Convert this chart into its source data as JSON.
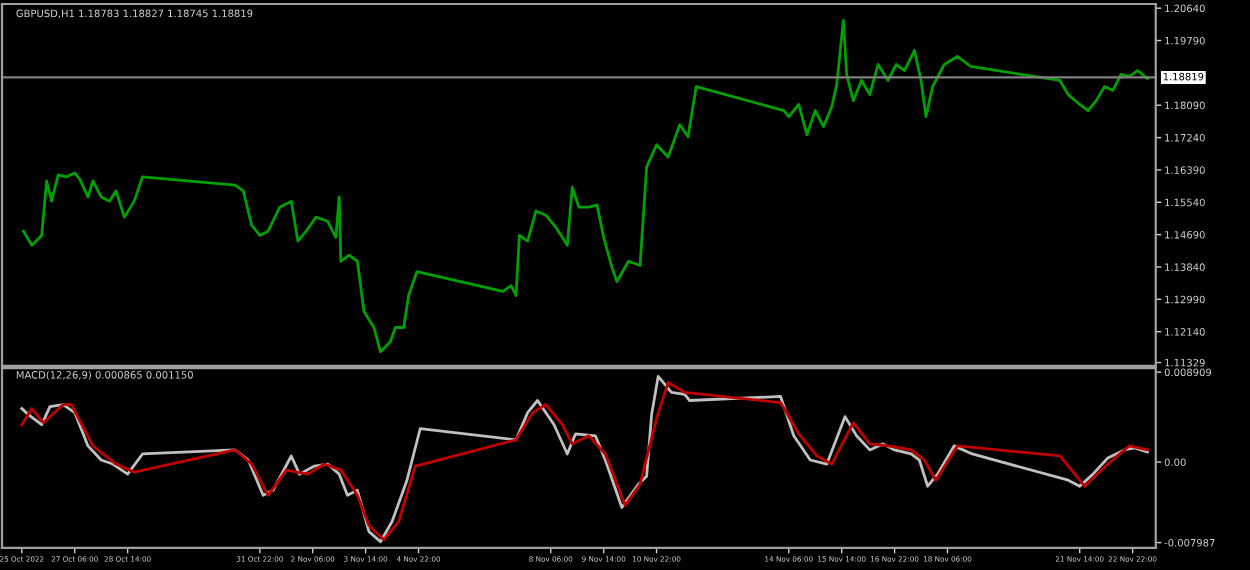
{
  "chart_data": [
    {
      "type": "line",
      "title": "GBPUSD,H1 1.18783 1.18827 1.18745 1.18819",
      "tick_labels": "y",
      "grid": false,
      "xlim": [
        "2022-10-25T10:00",
        "2022-11-23T12:00"
      ],
      "ylim": [
        1.1124,
        1.2075
      ],
      "yticks": [
        {
          "value": 1.2064,
          "label": "1.20640"
        },
        {
          "value": 1.1979,
          "label": "1.19790"
        },
        {
          "value": 1.1809,
          "label": "1.18090"
        },
        {
          "value": 1.1724,
          "label": "1.17240"
        },
        {
          "value": 1.1639,
          "label": "1.16390"
        },
        {
          "value": 1.1554,
          "label": "1.15540"
        },
        {
          "value": 1.1469,
          "label": "1.14690"
        },
        {
          "value": 1.1384,
          "label": "1.13840"
        },
        {
          "value": 1.1299,
          "label": "1.12990"
        },
        {
          "value": 1.1214,
          "label": "1.12140"
        },
        {
          "value": 1.11329,
          "label": "1.11329"
        }
      ],
      "ref_lines": [
        {
          "axis": "y",
          "value": 1.18819,
          "label": "1.18819",
          "color": "#808080"
        }
      ],
      "series": [
        {
          "color": "#00a000",
          "x": [
            "2022-10-25T23:00",
            "2022-10-26T04:00",
            "2022-10-26T10:00",
            "2022-10-26T13:00",
            "2022-10-26T16:00",
            "2022-10-26T20:00",
            "2022-10-27T01:00",
            "2022-10-27T06:00",
            "2022-10-27T09:00",
            "2022-10-27T14:00",
            "2022-10-27T17:00",
            "2022-10-27T22:00",
            "2022-10-28T03:00",
            "2022-10-28T07:00",
            "2022-10-28T12:00",
            "2022-10-28T18:00",
            "2022-10-28T23:00",
            "2022-10-31T07:00",
            "2022-10-31T12:00",
            "2022-10-31T17:00",
            "2022-10-31T22:00",
            "2022-11-01T03:00",
            "2022-11-01T10:00",
            "2022-11-01T17:00",
            "2022-11-01T21:00",
            "2022-11-02T02:00",
            "2022-11-02T08:00",
            "2022-11-02T15:00",
            "2022-11-02T20:00",
            "2022-11-02T22:00",
            "2022-11-02T23:00",
            "2022-11-03T04:00",
            "2022-11-03T09:00",
            "2022-11-03T13:00",
            "2022-11-03T19:00",
            "2022-11-03T23:00",
            "2022-11-04T05:00",
            "2022-11-04T08:00",
            "2022-11-04T13:00",
            "2022-11-04T16:00",
            "2022-11-04T21:00",
            "2022-11-07T01:00",
            "2022-11-07T06:00",
            "2022-11-07T09:00",
            "2022-11-07T11:00",
            "2022-11-07T16:00",
            "2022-11-07T21:00",
            "2022-11-08T03:00",
            "2022-11-08T09:00",
            "2022-11-08T16:00",
            "2022-11-08T19:00",
            "2022-11-08T23:00",
            "2022-11-09T05:00",
            "2022-11-09T10:00",
            "2022-11-09T14:00",
            "2022-11-09T19:00",
            "2022-11-09T22:00",
            "2022-11-10T05:00",
            "2022-11-10T12:00",
            "2022-11-10T16:00",
            "2022-11-10T22:00",
            "2022-11-11T05:00",
            "2022-11-11T12:00",
            "2022-11-11T17:00",
            "2022-11-11T22:00",
            "2022-11-14T03:00",
            "2022-11-14T06:00",
            "2022-11-14T12:00",
            "2022-11-14T17:00",
            "2022-11-14T22:00",
            "2022-11-15T03:00",
            "2022-11-15T08:00",
            "2022-11-15T11:00",
            "2022-11-15T15:00",
            "2022-11-15T17:00",
            "2022-11-15T21:00",
            "2022-11-16T02:00",
            "2022-11-16T07:00",
            "2022-11-16T12:00",
            "2022-11-16T18:00",
            "2022-11-16T23:00",
            "2022-11-17T04:00",
            "2022-11-17T10:00",
            "2022-11-17T14:00",
            "2022-11-17T17:00",
            "2022-11-17T21:00",
            "2022-11-18T04:00",
            "2022-11-18T12:00",
            "2022-11-18T20:00",
            "2022-11-21T02:00",
            "2022-11-21T07:00",
            "2022-11-21T14:00",
            "2022-11-21T19:00",
            "2022-11-22T00:00",
            "2022-11-22T05:00",
            "2022-11-22T10:00",
            "2022-11-22T15:00",
            "2022-11-22T20:00",
            "2022-11-23T01:00",
            "2022-11-23T07:00"
          ],
          "values": [
            1.1478,
            1.1441,
            1.1467,
            1.161,
            1.1557,
            1.1626,
            1.1621,
            1.1631,
            1.1615,
            1.1568,
            1.161,
            1.1568,
            1.1557,
            1.1584,
            1.1515,
            1.1557,
            1.1621,
            1.1599,
            1.1584,
            1.1494,
            1.1467,
            1.1478,
            1.1541,
            1.1557,
            1.1452,
            1.1478,
            1.1515,
            1.1504,
            1.1462,
            1.1568,
            1.1399,
            1.1415,
            1.1399,
            1.1267,
            1.1225,
            1.1161,
            1.1188,
            1.1225,
            1.1225,
            1.1309,
            1.1372,
            1.132,
            1.1335,
            1.1309,
            1.1467,
            1.1452,
            1.1531,
            1.152,
            1.1489,
            1.1441,
            1.1594,
            1.1541,
            1.1541,
            1.1547,
            1.1462,
            1.1383,
            1.1346,
            1.1399,
            1.1388,
            1.1647,
            1.1705,
            1.1673,
            1.1758,
            1.1726,
            1.1858,
            1.1795,
            1.1779,
            1.1811,
            1.1731,
            1.1795,
            1.1753,
            1.1805,
            1.1863,
            1.2032,
            1.189,
            1.1821,
            1.1874,
            1.1837,
            1.1916,
            1.1874,
            1.1916,
            1.19,
            1.1953,
            1.1874,
            1.1779,
            1.1858,
            1.1916,
            1.1937,
            1.1911,
            1.1874,
            1.1837,
            1.1811,
            1.1795,
            1.1821,
            1.1858,
            1.1848,
            1.189,
            1.1885,
            1.19,
            1.1879
          ]
        }
      ]
    },
    {
      "type": "line",
      "title": "MACD(12,26,9) 0.000865 0.001150",
      "grid": false,
      "xlim": [
        "2022-10-25T10:00",
        "2022-11-23T12:00"
      ],
      "ylim": [
        -0.0085,
        0.0093
      ],
      "yticks": [
        {
          "value": 0.008909,
          "label": "0.008909"
        },
        {
          "value": 0,
          "label": "0.00"
        },
        {
          "value": -0.007987,
          "label": "-0.007987"
        }
      ],
      "xticks": [
        {
          "value": "2022-10-25T22:00",
          "label": "25 Oct 2022"
        },
        {
          "value": "2022-10-27T06:00",
          "label": "27 Oct 06:00"
        },
        {
          "value": "2022-10-28T14:00",
          "label": "28 Oct 14:00"
        },
        {
          "value": "2022-10-31T22:00",
          "label": "31 Oct 22:00"
        },
        {
          "value": "2022-11-02T06:00",
          "label": "2 Nov 06:00"
        },
        {
          "value": "2022-11-03T14:00",
          "label": "3 Nov 14:00"
        },
        {
          "value": "2022-11-04T22:00",
          "label": "4 Nov 22:00"
        },
        {
          "value": "2022-11-08T06:00",
          "label": "8 Nov 06:00"
        },
        {
          "value": "2022-11-09T14:00",
          "label": "9 Nov 14:00"
        },
        {
          "value": "2022-11-10T22:00",
          "label": "10 Nov 22:00"
        },
        {
          "value": "2022-11-14T06:00",
          "label": "14 Nov 06:00"
        },
        {
          "value": "2022-11-15T14:00",
          "label": "15 Nov 14:00"
        },
        {
          "value": "2022-11-16T22:00",
          "label": "16 Nov 22:00"
        },
        {
          "value": "2022-11-18T06:00",
          "label": "18 Nov 06:00"
        },
        {
          "value": "2022-11-21T14:00",
          "label": "21 Nov 14:00"
        },
        {
          "value": "2022-11-22T22:00",
          "label": "22 Nov 22:00"
        }
      ],
      "series": [
        {
          "color": "#c0c0c0",
          "x": [
            "2022-10-25T22:00",
            "2022-10-26T02:00",
            "2022-10-26T10:00",
            "2022-10-26T15:00",
            "2022-10-26T23:00",
            "2022-10-27T06:00",
            "2022-10-27T14:00",
            "2022-10-27T22:00",
            "2022-10-28T05:00",
            "2022-10-28T14:00",
            "2022-10-28T23:00",
            "2022-10-31T07:00",
            "2022-10-31T15:00",
            "2022-11-01T00:00",
            "2022-11-01T06:00",
            "2022-11-01T17:00",
            "2022-11-01T22:00",
            "2022-11-02T07:00",
            "2022-11-02T15:00",
            "2022-11-02T22:00",
            "2022-11-03T03:00",
            "2022-11-03T09:00",
            "2022-11-03T16:00",
            "2022-11-03T23:00",
            "2022-11-04T06:00",
            "2022-11-04T15:00",
            "2022-11-04T23:00",
            "2022-11-07T09:00",
            "2022-11-07T16:00",
            "2022-11-07T22:00",
            "2022-11-08T08:00",
            "2022-11-08T16:00",
            "2022-11-08T21:00",
            "2022-11-09T09:00",
            "2022-11-09T15:00",
            "2022-11-10T01:00",
            "2022-11-10T11:00",
            "2022-11-10T16:00",
            "2022-11-10T19:00",
            "2022-11-10T23:00",
            "2022-11-11T07:00",
            "2022-11-11T15:00",
            "2022-11-11T18:00",
            "2022-11-14T01:00",
            "2022-11-14T09:00",
            "2022-11-14T19:00",
            "2022-11-15T05:00",
            "2022-11-15T16:00",
            "2022-11-15T23:00",
            "2022-11-16T07:00",
            "2022-11-16T15:00",
            "2022-11-16T22:00",
            "2022-11-17T08:00",
            "2022-11-17T13:00",
            "2022-11-17T18:00",
            "2022-11-18T00:00",
            "2022-11-18T10:00",
            "2022-11-18T21:00",
            "2022-11-21T07:00",
            "2022-11-21T14:00",
            "2022-11-21T22:00",
            "2022-11-22T07:00",
            "2022-11-22T17:00",
            "2022-11-22T23:00",
            "2022-11-23T07:00"
          ],
          "values": [
            0.0053,
            0.0047,
            0.0037,
            0.0055,
            0.0057,
            0.0049,
            0.0016,
            0.0002,
            -0.0002,
            -0.0012,
            0.0008,
            0.0012,
            0.0002,
            -0.0033,
            -0.0028,
            0.0006,
            -0.0012,
            -0.0004,
            -0.0002,
            -0.0012,
            -0.0033,
            -0.0028,
            -0.0069,
            -0.0079,
            -0.0059,
            -0.0018,
            0.0033,
            0.0022,
            0.0049,
            0.0061,
            0.0037,
            0.0008,
            0.0028,
            0.0026,
            0.0002,
            -0.0045,
            -0.0022,
            -0.0014,
            0.0047,
            0.0085,
            0.0069,
            0.0067,
            0.0061,
            0.0065,
            0.0026,
            0.0002,
            -0.0002,
            0.0045,
            0.0026,
            0.0012,
            0.0018,
            0.0012,
            0.0008,
            0.0002,
            -0.0024,
            -0.0012,
            0.0016,
            0.0008,
            -0.0018,
            -0.0024,
            -0.0012,
            0.0004,
            0.0012,
            0.0014,
            0.001
          ]
        },
        {
          "color": "#c00000",
          "x": [
            "2022-10-25T22:00",
            "2022-10-26T04:00",
            "2022-10-26T11:00",
            "2022-10-26T23:00",
            "2022-10-27T04:00",
            "2022-10-27T17:00",
            "2022-10-28T07:00",
            "2022-10-28T18:00",
            "2022-10-31T07:00",
            "2022-10-31T17:00",
            "2022-11-01T03:00",
            "2022-11-01T14:00",
            "2022-11-02T03:00",
            "2022-11-02T13:00",
            "2022-11-02T23:00",
            "2022-11-03T09:00",
            "2022-11-03T16:00",
            "2022-11-04T01:00",
            "2022-11-04T10:00",
            "2022-11-04T20:00",
            "2022-11-07T09:00",
            "2022-11-07T19:00",
            "2022-11-08T03:00",
            "2022-11-08T13:00",
            "2022-11-08T19:00",
            "2022-11-09T05:00",
            "2022-11-09T15:00",
            "2022-11-10T03:00",
            "2022-11-10T12:00",
            "2022-11-10T22:00",
            "2022-11-11T05:00",
            "2022-11-11T15:00",
            "2022-11-14T01:00",
            "2022-11-14T12:00",
            "2022-11-14T23:00",
            "2022-11-15T08:00",
            "2022-11-15T21:00",
            "2022-11-16T07:00",
            "2022-11-16T18:00",
            "2022-11-17T08:00",
            "2022-11-17T16:00",
            "2022-11-17T23:00",
            "2022-11-18T12:00",
            "2022-11-21T02:00",
            "2022-11-21T17:00",
            "2022-11-22T07:00",
            "2022-11-22T20:00",
            "2022-11-23T07:00"
          ],
          "values": [
            0.0037,
            0.0053,
            0.0039,
            0.0057,
            0.0057,
            0.0016,
            -0.0002,
            -0.001,
            0.0012,
            -0.0002,
            -0.0033,
            -0.0008,
            -0.0012,
            -0.0002,
            -0.0008,
            -0.0033,
            -0.0063,
            -0.0077,
            -0.0059,
            -0.0004,
            0.0022,
            0.0049,
            0.0057,
            0.0037,
            0.0018,
            0.0026,
            0.0008,
            -0.0043,
            -0.0022,
            0.0043,
            0.0079,
            0.0069,
            0.0059,
            0.0028,
            0.0006,
            -0.0002,
            0.0039,
            0.0018,
            0.0016,
            0.0012,
            0.0002,
            -0.0018,
            0.0016,
            0.0006,
            -0.0024,
            -0.0002,
            0.0016,
            0.0012
          ]
        }
      ]
    }
  ]
}
